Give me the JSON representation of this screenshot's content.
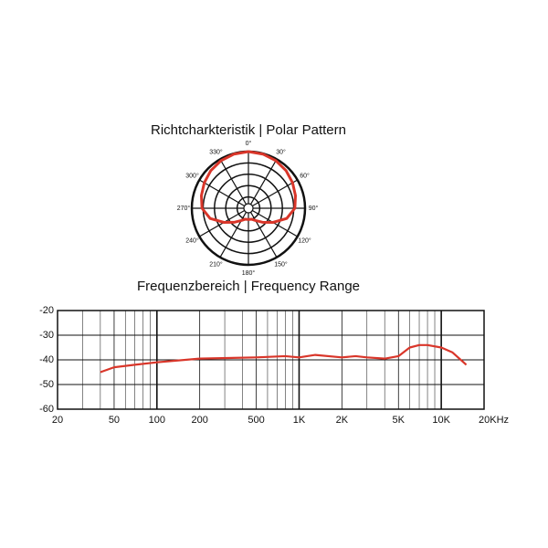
{
  "chart_data": [
    {
      "type": "polar",
      "title": "Richtcharkteristik | Polar Pattern",
      "angle_ticks": [
        {
          "value": 0,
          "label": "0°"
        },
        {
          "value": 30,
          "label": "30°"
        },
        {
          "value": 60,
          "label": "60°"
        },
        {
          "value": 90,
          "label": "90°"
        },
        {
          "value": 120,
          "label": "120°"
        },
        {
          "value": 150,
          "label": "150°"
        },
        {
          "value": 180,
          "label": "180°"
        },
        {
          "value": 210,
          "label": "210°"
        },
        {
          "value": 240,
          "label": "240°"
        },
        {
          "value": 270,
          "label": "270°"
        },
        {
          "value": 300,
          "label": "300°"
        },
        {
          "value": 330,
          "label": "330°"
        }
      ],
      "rlim": [
        0,
        1
      ],
      "rticks": [
        0.2,
        0.4,
        0.6,
        0.8,
        1
      ],
      "series": [
        {
          "color": "#d9362a",
          "theta": [
            0,
            15,
            30,
            45,
            60,
            75,
            90,
            105,
            120,
            135,
            150,
            165,
            180,
            195,
            210,
            225,
            240,
            255,
            270,
            285,
            300,
            315,
            330,
            345
          ],
          "values": [
            1,
            0.99,
            0.97,
            0.94,
            0.9,
            0.86,
            0.82,
            0.7,
            0.5,
            0.35,
            0.25,
            0.2,
            0.2,
            0.2,
            0.25,
            0.35,
            0.5,
            0.7,
            0.82,
            0.86,
            0.9,
            0.94,
            0.97,
            0.99
          ]
        }
      ]
    },
    {
      "type": "line",
      "title": "Frequenzbereich | Frequency Range",
      "xscale": "log",
      "xlim": [
        20,
        20000
      ],
      "ylim": [
        -60,
        -20
      ],
      "xticks": [
        20,
        50,
        100,
        200,
        500,
        {
          "value": 1000,
          "label": "1K"
        },
        {
          "value": 2000,
          "label": "2K"
        },
        {
          "value": 5000,
          "label": "5K"
        },
        {
          "value": 10000,
          "label": "10K"
        },
        {
          "value": 20000,
          "label": "20KHz"
        }
      ],
      "xminorticks": [
        30,
        40,
        60,
        70,
        80,
        90,
        300,
        400,
        600,
        700,
        800,
        900,
        3000,
        4000,
        6000,
        7000,
        8000,
        9000
      ],
      "yticks": [
        -20,
        -30,
        -40,
        -50,
        -60
      ],
      "grid": true,
      "series": [
        {
          "color": "#d9362a",
          "x": [
            40,
            50,
            70,
            100,
            200,
            500,
            800,
            1000,
            1300,
            2000,
            2500,
            3000,
            4000,
            5000,
            6000,
            7000,
            8000,
            10000,
            12000,
            15000
          ],
          "values": [
            -45,
            -43,
            -42,
            -41,
            -39.5,
            -39,
            -38.5,
            -39,
            -38,
            -39,
            -38.5,
            -39,
            -39.5,
            -38.5,
            -35,
            -34,
            -34,
            -35,
            -37,
            -42
          ]
        }
      ]
    }
  ]
}
